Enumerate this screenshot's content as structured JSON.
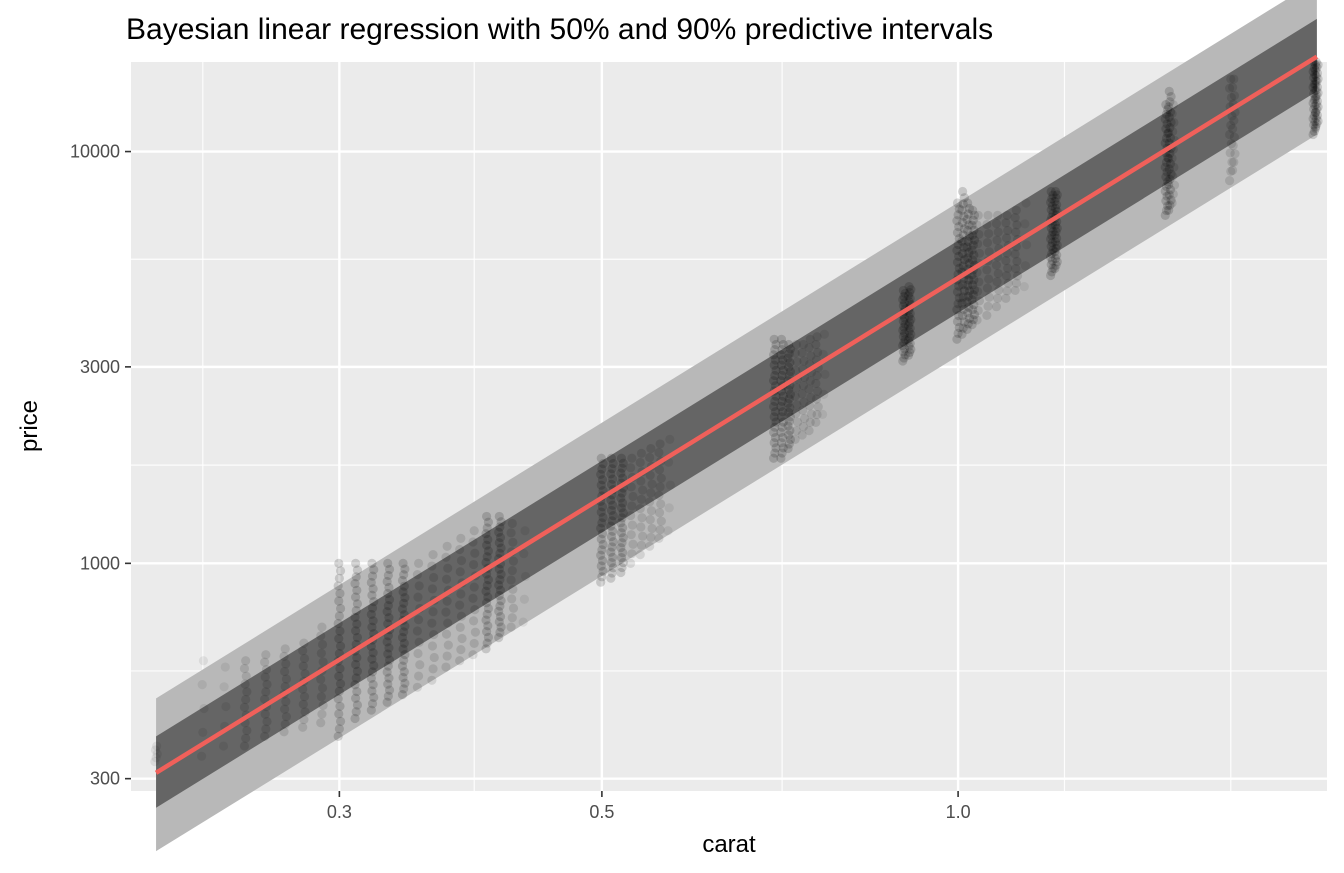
{
  "chart_data": {
    "type": "scatter",
    "title": "Bayesian linear regression with 50% and 90% predictive intervals",
    "xlabel": "carat",
    "ylabel": "price",
    "x_scale": "log10",
    "y_scale": "log10",
    "xlim": [
      0.2,
      2.05
    ],
    "ylim": [
      280,
      16500
    ],
    "x_ticks": [
      {
        "value": 0.3,
        "label": "0.3"
      },
      {
        "value": 0.5,
        "label": "0.5"
      },
      {
        "value": 1.0,
        "label": "1.0"
      }
    ],
    "x_minor_gridlines": [
      0.23,
      0.39,
      0.71,
      1.23,
      1.7
    ],
    "y_ticks": [
      {
        "value": 300,
        "label": "300"
      },
      {
        "value": 1000,
        "label": "1000"
      },
      {
        "value": 3000,
        "label": "3000"
      },
      {
        "value": 10000,
        "label": "10000"
      }
    ],
    "y_minor_gridlines": [
      548,
      1732,
      5477
    ],
    "grid": true,
    "regression_line": {
      "color": "#f0605a",
      "points": [
        {
          "carat": 0.21,
          "price": 310
        },
        {
          "carat": 2.01,
          "price": 17000
        }
      ]
    },
    "interval_90": {
      "color": "#b8b8b8",
      "lower": [
        {
          "carat": 0.21,
          "price": 200
        },
        {
          "carat": 2.01,
          "price": 11000
        }
      ],
      "upper": [
        {
          "carat": 0.21,
          "price": 470
        },
        {
          "carat": 2.01,
          "price": 26000
        }
      ]
    },
    "interval_50": {
      "color": "#4a4a4a",
      "lower": [
        {
          "carat": 0.21,
          "price": 255
        },
        {
          "carat": 2.01,
          "price": 14000
        }
      ],
      "upper": [
        {
          "carat": 0.21,
          "price": 380
        },
        {
          "carat": 2.01,
          "price": 21000
        }
      ]
    },
    "point_clusters": [
      {
        "carat": 0.21,
        "price_low": 330,
        "price_high": 360,
        "density": "low"
      },
      {
        "carat": 0.23,
        "price_low": 340,
        "price_high": 580,
        "density": "low"
      },
      {
        "carat": 0.24,
        "price_low": 360,
        "price_high": 560,
        "density": "low"
      },
      {
        "carat": 0.25,
        "price_low": 360,
        "price_high": 580,
        "density": "medium"
      },
      {
        "carat": 0.26,
        "price_low": 380,
        "price_high": 600,
        "density": "medium"
      },
      {
        "carat": 0.27,
        "price_low": 390,
        "price_high": 620,
        "density": "medium"
      },
      {
        "carat": 0.28,
        "price_low": 400,
        "price_high": 640,
        "density": "medium"
      },
      {
        "carat": 0.29,
        "price_low": 410,
        "price_high": 700,
        "density": "medium"
      },
      {
        "carat": 0.3,
        "price_low": 380,
        "price_high": 1000,
        "density": "high"
      },
      {
        "carat": 0.31,
        "price_low": 420,
        "price_high": 1000,
        "density": "high"
      },
      {
        "carat": 0.32,
        "price_low": 440,
        "price_high": 1000,
        "density": "high"
      },
      {
        "carat": 0.33,
        "price_low": 460,
        "price_high": 1000,
        "density": "high"
      },
      {
        "carat": 0.34,
        "price_low": 480,
        "price_high": 1000,
        "density": "high"
      },
      {
        "carat": 0.35,
        "price_low": 500,
        "price_high": 1000,
        "density": "medium"
      },
      {
        "carat": 0.36,
        "price_low": 520,
        "price_high": 1050,
        "density": "medium"
      },
      {
        "carat": 0.37,
        "price_low": 560,
        "price_high": 1100,
        "density": "medium"
      },
      {
        "carat": 0.38,
        "price_low": 580,
        "price_high": 1150,
        "density": "medium"
      },
      {
        "carat": 0.39,
        "price_low": 600,
        "price_high": 1200,
        "density": "medium"
      },
      {
        "carat": 0.4,
        "price_low": 620,
        "price_high": 1300,
        "density": "high"
      },
      {
        "carat": 0.41,
        "price_low": 660,
        "price_high": 1300,
        "density": "high"
      },
      {
        "carat": 0.42,
        "price_low": 700,
        "price_high": 1250,
        "density": "medium"
      },
      {
        "carat": 0.43,
        "price_low": 720,
        "price_high": 1200,
        "density": "low"
      },
      {
        "carat": 0.5,
        "price_low": 900,
        "price_high": 1800,
        "density": "high"
      },
      {
        "carat": 0.51,
        "price_low": 920,
        "price_high": 1800,
        "density": "high"
      },
      {
        "carat": 0.52,
        "price_low": 950,
        "price_high": 1800,
        "density": "high"
      },
      {
        "carat": 0.53,
        "price_low": 1000,
        "price_high": 1800,
        "density": "medium"
      },
      {
        "carat": 0.54,
        "price_low": 1050,
        "price_high": 1850,
        "density": "medium"
      },
      {
        "carat": 0.55,
        "price_low": 1100,
        "price_high": 1900,
        "density": "medium"
      },
      {
        "carat": 0.56,
        "price_low": 1150,
        "price_high": 1950,
        "density": "medium"
      },
      {
        "carat": 0.57,
        "price_low": 1200,
        "price_high": 2000,
        "density": "low"
      },
      {
        "carat": 0.7,
        "price_low": 1800,
        "price_high": 3500,
        "density": "high"
      },
      {
        "carat": 0.71,
        "price_low": 1800,
        "price_high": 3500,
        "density": "high"
      },
      {
        "carat": 0.72,
        "price_low": 1900,
        "price_high": 3400,
        "density": "high"
      },
      {
        "carat": 0.73,
        "price_low": 2000,
        "price_high": 3400,
        "density": "medium"
      },
      {
        "carat": 0.74,
        "price_low": 2050,
        "price_high": 3400,
        "density": "medium"
      },
      {
        "carat": 0.75,
        "price_low": 2100,
        "price_high": 3500,
        "density": "medium"
      },
      {
        "carat": 0.76,
        "price_low": 2200,
        "price_high": 3550,
        "density": "medium"
      },
      {
        "carat": 0.77,
        "price_low": 2300,
        "price_high": 3600,
        "density": "low"
      },
      {
        "carat": 0.9,
        "price_low": 3100,
        "price_high": 4600,
        "density": "high"
      },
      {
        "carat": 0.91,
        "price_low": 3200,
        "price_high": 4700,
        "density": "high"
      },
      {
        "carat": 1.0,
        "price_low": 3500,
        "price_high": 7500,
        "density": "high"
      },
      {
        "carat": 1.01,
        "price_low": 3600,
        "price_high": 8000,
        "density": "high"
      },
      {
        "carat": 1.02,
        "price_low": 3700,
        "price_high": 7500,
        "density": "high"
      },
      {
        "carat": 1.03,
        "price_low": 3800,
        "price_high": 7200,
        "density": "high"
      },
      {
        "carat": 1.04,
        "price_low": 3900,
        "price_high": 7000,
        "density": "medium"
      },
      {
        "carat": 1.06,
        "price_low": 4000,
        "price_high": 7000,
        "density": "medium"
      },
      {
        "carat": 1.08,
        "price_low": 4200,
        "price_high": 7000,
        "density": "medium"
      },
      {
        "carat": 1.1,
        "price_low": 4400,
        "price_high": 7000,
        "density": "medium"
      },
      {
        "carat": 1.12,
        "price_low": 4600,
        "price_high": 7200,
        "density": "medium"
      },
      {
        "carat": 1.14,
        "price_low": 4700,
        "price_high": 7500,
        "density": "low"
      },
      {
        "carat": 1.2,
        "price_low": 5000,
        "price_high": 8000,
        "density": "high"
      },
      {
        "carat": 1.21,
        "price_low": 5200,
        "price_high": 8000,
        "density": "high"
      },
      {
        "carat": 1.5,
        "price_low": 7000,
        "price_high": 13000,
        "density": "high"
      },
      {
        "carat": 1.51,
        "price_low": 7200,
        "price_high": 14000,
        "density": "high"
      },
      {
        "carat": 1.52,
        "price_low": 7500,
        "price_high": 13000,
        "density": "medium"
      },
      {
        "carat": 1.7,
        "price_low": 8500,
        "price_high": 15000,
        "density": "medium"
      },
      {
        "carat": 1.71,
        "price_low": 9000,
        "price_high": 15000,
        "density": "medium"
      },
      {
        "carat": 2.0,
        "price_low": 11000,
        "price_high": 16500,
        "density": "high"
      },
      {
        "carat": 2.01,
        "price_low": 11500,
        "price_high": 16500,
        "density": "high"
      }
    ]
  }
}
